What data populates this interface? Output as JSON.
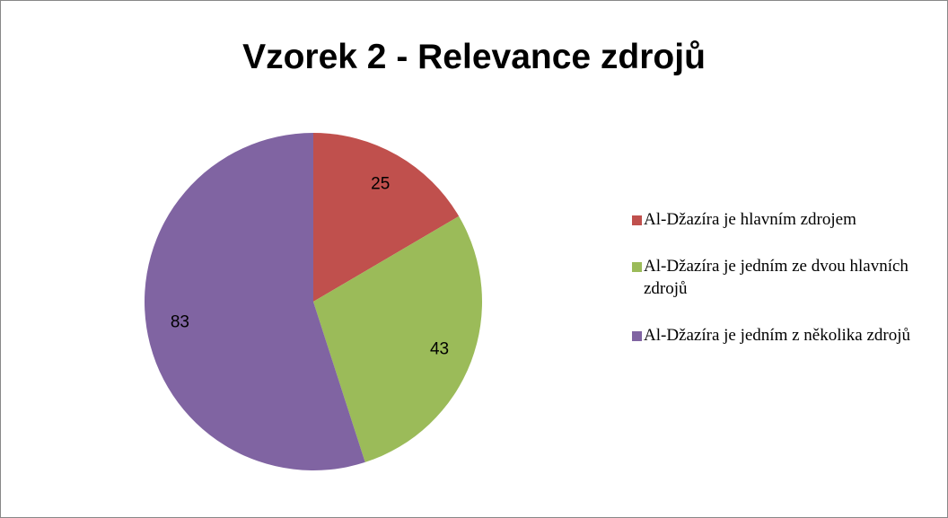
{
  "chart_data": {
    "type": "pie",
    "title": "Vzorek 2 - Relevance zdrojů",
    "categories": [
      "Al-Džazíra je hlavním zdrojem",
      "Al-Džazíra je jedním ze dvou hlavních zdrojů",
      "Al-Džazíra je jedním z několika zdrojů"
    ],
    "values": [
      25,
      43,
      83
    ],
    "colors": [
      "#c0504d",
      "#9bbb59",
      "#8064a2"
    ],
    "legend": "right"
  }
}
